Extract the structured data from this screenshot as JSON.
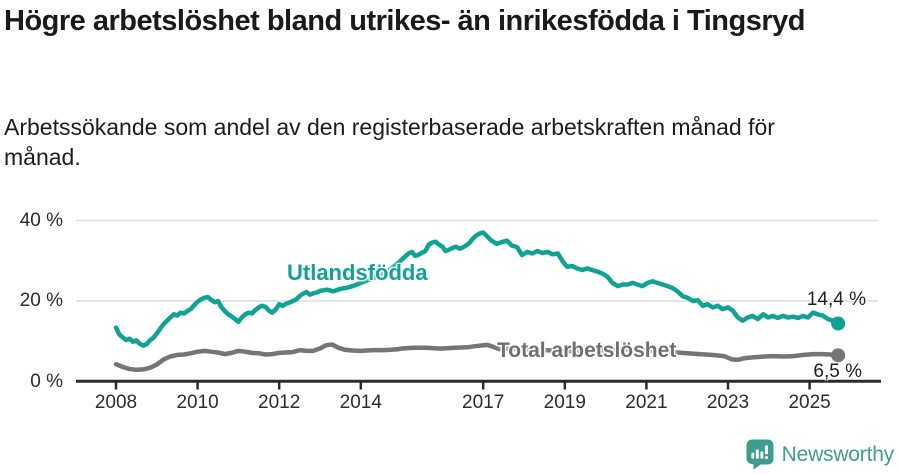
{
  "title": "Högre arbetslöshet bland utrikes- än inrikesfödda i Tingsryd",
  "subtitle": "Arbetssökande som andel av den registerbaserade arbetskraften månad för månad.",
  "branding": {
    "logo_text": "Newsworthy",
    "logo_icon": "speech-bubble-bar-chart-exclamation-icon",
    "logo_color": "#3f9d90"
  },
  "chart_data": {
    "type": "line",
    "title": "Högre arbetslöshet bland utrikes- än inrikesfödda i Tingsryd",
    "subtitle": "Arbetssökande som andel av den registerbaserade arbetskraften månad för månad.",
    "unit": "%",
    "grid": "horizontal",
    "legend_position": "inline-labels",
    "x_axis": {
      "ticks": [
        2008,
        2010,
        2012,
        2014,
        2017,
        2019,
        2021,
        2023,
        2025
      ],
      "range": [
        2008,
        2025.75
      ]
    },
    "y_axis": {
      "ticks": [
        0,
        20,
        40
      ],
      "tick_labels": [
        "0 %",
        "20 %",
        "40 %"
      ],
      "range": [
        0,
        43
      ]
    },
    "series": [
      {
        "name": "Utlandsfödda",
        "color": "#10a394",
        "end_value": 14.4,
        "end_label": "14,4 %",
        "points": [
          [
            2008.0,
            13.4
          ],
          [
            2008.08,
            11.7
          ],
          [
            2008.17,
            10.9
          ],
          [
            2008.25,
            10.3
          ],
          [
            2008.33,
            10.6
          ],
          [
            2008.42,
            9.9
          ],
          [
            2008.5,
            10.2
          ],
          [
            2008.58,
            9.4
          ],
          [
            2008.67,
            8.9
          ],
          [
            2008.75,
            9.3
          ],
          [
            2008.83,
            10.2
          ],
          [
            2008.92,
            10.9
          ],
          [
            2009.0,
            11.9
          ],
          [
            2009.08,
            13.1
          ],
          [
            2009.17,
            14.3
          ],
          [
            2009.25,
            15.1
          ],
          [
            2009.33,
            15.9
          ],
          [
            2009.42,
            16.7
          ],
          [
            2009.5,
            16.4
          ],
          [
            2009.58,
            17.1
          ],
          [
            2009.67,
            16.9
          ],
          [
            2009.75,
            17.5
          ],
          [
            2009.83,
            18.0
          ],
          [
            2009.92,
            19.0
          ],
          [
            2010.0,
            19.8
          ],
          [
            2010.08,
            20.4
          ],
          [
            2010.17,
            20.8
          ],
          [
            2010.25,
            21.0
          ],
          [
            2010.33,
            20.3
          ],
          [
            2010.42,
            19.7
          ],
          [
            2010.5,
            20.0
          ],
          [
            2010.58,
            18.5
          ],
          [
            2010.67,
            17.5
          ],
          [
            2010.75,
            16.7
          ],
          [
            2010.83,
            16.2
          ],
          [
            2010.92,
            15.5
          ],
          [
            2011.0,
            14.8
          ],
          [
            2011.08,
            15.9
          ],
          [
            2011.17,
            16.7
          ],
          [
            2011.25,
            17.1
          ],
          [
            2011.33,
            16.9
          ],
          [
            2011.42,
            17.8
          ],
          [
            2011.5,
            18.4
          ],
          [
            2011.58,
            18.8
          ],
          [
            2011.67,
            18.5
          ],
          [
            2011.75,
            17.6
          ],
          [
            2011.83,
            17.1
          ],
          [
            2011.92,
            18.0
          ],
          [
            2012.0,
            19.2
          ],
          [
            2012.08,
            18.8
          ],
          [
            2012.17,
            19.3
          ],
          [
            2012.25,
            19.6
          ],
          [
            2012.33,
            20.0
          ],
          [
            2012.42,
            20.4
          ],
          [
            2012.5,
            21.2
          ],
          [
            2012.58,
            21.8
          ],
          [
            2012.67,
            22.2
          ],
          [
            2012.75,
            21.6
          ],
          [
            2012.83,
            21.9
          ],
          [
            2012.92,
            22.1
          ],
          [
            2013.0,
            22.5
          ],
          [
            2013.17,
            22.8
          ],
          [
            2013.33,
            22.4
          ],
          [
            2013.5,
            23.0
          ],
          [
            2013.67,
            23.3
          ],
          [
            2013.83,
            23.8
          ],
          [
            2014.0,
            24.5
          ],
          [
            2014.25,
            25.5
          ],
          [
            2014.5,
            26.5
          ],
          [
            2014.75,
            28.0
          ],
          [
            2015.0,
            30.2
          ],
          [
            2015.08,
            31.0
          ],
          [
            2015.17,
            31.8
          ],
          [
            2015.25,
            32.2
          ],
          [
            2015.33,
            31.2
          ],
          [
            2015.42,
            31.5
          ],
          [
            2015.5,
            32.0
          ],
          [
            2015.58,
            32.4
          ],
          [
            2015.67,
            34.0
          ],
          [
            2015.75,
            34.5
          ],
          [
            2015.83,
            34.7
          ],
          [
            2015.92,
            34.0
          ],
          [
            2016.0,
            33.5
          ],
          [
            2016.08,
            32.4
          ],
          [
            2016.17,
            32.8
          ],
          [
            2016.25,
            33.2
          ],
          [
            2016.33,
            33.5
          ],
          [
            2016.42,
            33.0
          ],
          [
            2016.5,
            33.3
          ],
          [
            2016.58,
            33.8
          ],
          [
            2016.67,
            34.5
          ],
          [
            2016.75,
            35.5
          ],
          [
            2016.83,
            36.3
          ],
          [
            2016.92,
            36.8
          ],
          [
            2017.0,
            37.0
          ],
          [
            2017.08,
            36.2
          ],
          [
            2017.2,
            35.0
          ],
          [
            2017.33,
            34.2
          ],
          [
            2017.45,
            34.6
          ],
          [
            2017.58,
            35.0
          ],
          [
            2017.7,
            33.8
          ],
          [
            2017.83,
            33.4
          ],
          [
            2017.95,
            31.4
          ],
          [
            2018.08,
            32.2
          ],
          [
            2018.2,
            31.8
          ],
          [
            2018.33,
            32.4
          ],
          [
            2018.45,
            31.9
          ],
          [
            2018.58,
            32.2
          ],
          [
            2018.7,
            31.6
          ],
          [
            2018.83,
            31.8
          ],
          [
            2018.95,
            29.8
          ],
          [
            2019.06,
            28.5
          ],
          [
            2019.18,
            28.7
          ],
          [
            2019.3,
            28.1
          ],
          [
            2019.43,
            27.7
          ],
          [
            2019.55,
            28.1
          ],
          [
            2019.67,
            27.7
          ],
          [
            2019.8,
            27.3
          ],
          [
            2019.92,
            26.8
          ],
          [
            2020.04,
            26.1
          ],
          [
            2020.17,
            24.5
          ],
          [
            2020.3,
            23.7
          ],
          [
            2020.42,
            24.1
          ],
          [
            2020.54,
            24.1
          ],
          [
            2020.66,
            24.5
          ],
          [
            2020.78,
            24.1
          ],
          [
            2020.9,
            23.7
          ],
          [
            2021.03,
            24.5
          ],
          [
            2021.15,
            24.9
          ],
          [
            2021.27,
            24.5
          ],
          [
            2021.4,
            24.1
          ],
          [
            2021.52,
            23.7
          ],
          [
            2021.64,
            23.2
          ],
          [
            2021.76,
            22.4
          ],
          [
            2021.89,
            21.2
          ],
          [
            2022.01,
            20.8
          ],
          [
            2022.14,
            20.0
          ],
          [
            2022.26,
            20.2
          ],
          [
            2022.38,
            18.8
          ],
          [
            2022.5,
            19.2
          ],
          [
            2022.63,
            18.4
          ],
          [
            2022.75,
            18.8
          ],
          [
            2022.87,
            18.0
          ],
          [
            2023.0,
            18.4
          ],
          [
            2023.12,
            17.6
          ],
          [
            2023.24,
            15.9
          ],
          [
            2023.36,
            15.1
          ],
          [
            2023.48,
            15.9
          ],
          [
            2023.6,
            16.3
          ],
          [
            2023.73,
            15.5
          ],
          [
            2023.86,
            16.7
          ],
          [
            2023.98,
            15.9
          ],
          [
            2024.1,
            16.3
          ],
          [
            2024.22,
            15.8
          ],
          [
            2024.35,
            16.3
          ],
          [
            2024.47,
            15.9
          ],
          [
            2024.6,
            16.1
          ],
          [
            2024.72,
            15.8
          ],
          [
            2024.84,
            16.3
          ],
          [
            2024.96,
            15.9
          ],
          [
            2025.08,
            17.1
          ],
          [
            2025.2,
            16.7
          ],
          [
            2025.33,
            16.3
          ],
          [
            2025.45,
            15.5
          ],
          [
            2025.58,
            15.1
          ],
          [
            2025.7,
            14.4
          ]
        ]
      },
      {
        "name": "Total arbetslöshet",
        "color": "#757579",
        "end_value": 6.5,
        "end_label": "6,5 %",
        "points": [
          [
            2008.0,
            4.3
          ],
          [
            2008.17,
            3.6
          ],
          [
            2008.33,
            3.1
          ],
          [
            2008.5,
            2.9
          ],
          [
            2008.67,
            3.0
          ],
          [
            2008.83,
            3.4
          ],
          [
            2009.0,
            4.2
          ],
          [
            2009.17,
            5.5
          ],
          [
            2009.33,
            6.2
          ],
          [
            2009.5,
            6.6
          ],
          [
            2009.67,
            6.7
          ],
          [
            2009.83,
            7.0
          ],
          [
            2010.0,
            7.4
          ],
          [
            2010.17,
            7.6
          ],
          [
            2010.33,
            7.4
          ],
          [
            2010.5,
            7.2
          ],
          [
            2010.67,
            6.8
          ],
          [
            2010.83,
            7.1
          ],
          [
            2011.0,
            7.6
          ],
          [
            2011.17,
            7.4
          ],
          [
            2011.33,
            7.1
          ],
          [
            2011.5,
            7.0
          ],
          [
            2011.67,
            6.7
          ],
          [
            2011.83,
            6.8
          ],
          [
            2012.0,
            7.1
          ],
          [
            2012.17,
            7.2
          ],
          [
            2012.33,
            7.3
          ],
          [
            2012.5,
            7.8
          ],
          [
            2012.67,
            7.6
          ],
          [
            2012.83,
            7.6
          ],
          [
            2013.0,
            8.2
          ],
          [
            2013.15,
            9.0
          ],
          [
            2013.3,
            9.2
          ],
          [
            2013.45,
            8.4
          ],
          [
            2013.6,
            7.9
          ],
          [
            2013.8,
            7.7
          ],
          [
            2014.0,
            7.6
          ],
          [
            2014.3,
            7.8
          ],
          [
            2014.6,
            7.8
          ],
          [
            2014.9,
            8.0
          ],
          [
            2015.0,
            8.2
          ],
          [
            2015.3,
            8.4
          ],
          [
            2015.6,
            8.4
          ],
          [
            2015.9,
            8.2
          ],
          [
            2016.0,
            8.2
          ],
          [
            2016.3,
            8.4
          ],
          [
            2016.6,
            8.5
          ],
          [
            2016.9,
            8.9
          ],
          [
            2017.1,
            9.1
          ],
          [
            2017.25,
            8.6
          ],
          [
            2017.4,
            8.0
          ],
          [
            2017.6,
            8.2
          ],
          [
            2018.0,
            8.0
          ],
          [
            2018.5,
            7.8
          ],
          [
            2019.0,
            7.6
          ],
          [
            2019.5,
            7.4
          ],
          [
            2020.0,
            7.8
          ],
          [
            2020.5,
            8.0
          ],
          [
            2021.0,
            7.8
          ],
          [
            2021.5,
            7.4
          ],
          [
            2022.0,
            7.0
          ],
          [
            2022.3,
            6.8
          ],
          [
            2022.6,
            6.6
          ],
          [
            2022.9,
            6.3
          ],
          [
            2023.1,
            5.5
          ],
          [
            2023.25,
            5.4
          ],
          [
            2023.4,
            5.8
          ],
          [
            2023.6,
            6.0
          ],
          [
            2023.9,
            6.2
          ],
          [
            2024.1,
            6.3
          ],
          [
            2024.35,
            6.2
          ],
          [
            2024.6,
            6.3
          ],
          [
            2024.85,
            6.6
          ],
          [
            2025.1,
            6.8
          ],
          [
            2025.3,
            6.8
          ],
          [
            2025.5,
            6.7
          ],
          [
            2025.7,
            6.5
          ]
        ]
      }
    ]
  }
}
